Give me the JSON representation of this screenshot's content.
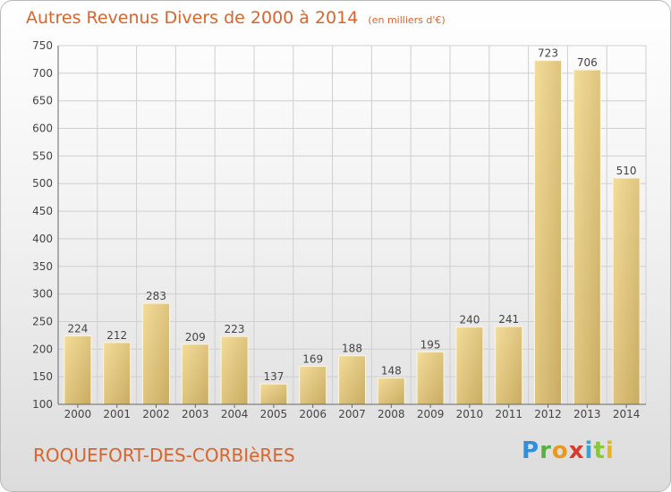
{
  "header": {
    "title": "Autres Revenus Divers de 2000 à 2014",
    "subtitle": "(en milliers d'€)"
  },
  "footer": {
    "place": "ROQUEFORT-DES-CORBIèRES",
    "logo": "Proxiti"
  },
  "colors": {
    "title": "#d9642c",
    "bar_light": "#f3dc9a",
    "bar_dark": "#c9ac62",
    "grid": "#cfcfcf"
  },
  "chart_data": {
    "type": "bar",
    "title": "Autres Revenus Divers de 2000 à 2014",
    "subtitle": "(en milliers d'€)",
    "xlabel": "",
    "ylabel": "",
    "categories": [
      "2000",
      "2001",
      "2002",
      "2003",
      "2004",
      "2005",
      "2006",
      "2007",
      "2008",
      "2009",
      "2010",
      "2011",
      "2012",
      "2013",
      "2014"
    ],
    "values": [
      224,
      212,
      283,
      209,
      223,
      137,
      169,
      188,
      148,
      195,
      240,
      241,
      723,
      706,
      510
    ],
    "ylim": [
      100,
      750
    ],
    "yticks": [
      100,
      150,
      200,
      250,
      300,
      350,
      400,
      450,
      500,
      550,
      600,
      650,
      700,
      750
    ],
    "grid": true,
    "legend": "none"
  }
}
